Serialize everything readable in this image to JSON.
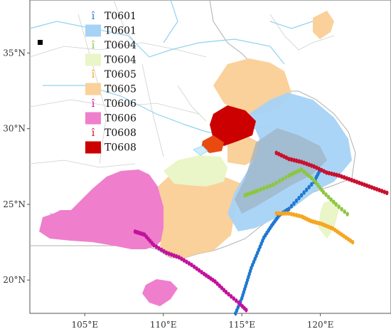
{
  "axes": {
    "x_ticks": [
      "105°E",
      "110°E",
      "115°E",
      "120°E"
    ],
    "y_ticks": [
      "35°N",
      "30°N",
      "25°N",
      "20°N"
    ],
    "lon_range": [
      101.5,
      124.5
    ],
    "lat_range": [
      17.8,
      38.5
    ]
  },
  "legend": [
    {
      "label": "T0601",
      "kind": "track",
      "color": "#1f78d1",
      "icon": "track-marker-icon"
    },
    {
      "label": "T0601",
      "kind": "area",
      "color": "#a6d3f5",
      "icon": "area-swatch-icon"
    },
    {
      "label": "T0604",
      "kind": "track",
      "color": "#8cc63f",
      "icon": "track-marker-icon"
    },
    {
      "label": "T0604",
      "kind": "area",
      "color": "#eaf5c8",
      "icon": "area-swatch-icon"
    },
    {
      "label": "T0605",
      "kind": "track",
      "color": "#f5a623",
      "icon": "track-marker-icon"
    },
    {
      "label": "T0605",
      "kind": "area",
      "color": "#fad19a",
      "icon": "area-swatch-icon"
    },
    {
      "label": "T0606",
      "kind": "track",
      "color": "#c2129b",
      "icon": "track-marker-icon"
    },
    {
      "label": "T0606",
      "kind": "area",
      "color": "#ef7fcc",
      "icon": "area-swatch-icon"
    },
    {
      "label": "T0608",
      "kind": "track",
      "color": "#c8102e",
      "icon": "track-marker-icon"
    },
    {
      "label": "T0608",
      "kind": "area",
      "color": "#cc0000",
      "icon": "area-swatch-icon"
    }
  ],
  "tracks": [
    {
      "name": "T0601",
      "color": "#1f78d1",
      "points": [
        [
          114.6,
          17.8
        ],
        [
          115.0,
          18.8
        ],
        [
          115.3,
          19.8
        ],
        [
          115.6,
          20.8
        ],
        [
          116.0,
          21.8
        ],
        [
          116.4,
          22.8
        ],
        [
          116.9,
          23.6
        ],
        [
          117.4,
          24.3
        ],
        [
          118.0,
          24.7
        ],
        [
          118.8,
          25.6
        ],
        [
          119.6,
          26.5
        ],
        [
          120.0,
          27.3
        ]
      ]
    },
    {
      "name": "T0604",
      "color": "#8cc63f",
      "points": [
        [
          115.2,
          25.6
        ],
        [
          116.0,
          25.9
        ],
        [
          117.0,
          26.3
        ],
        [
          118.0,
          26.9
        ],
        [
          118.8,
          27.3
        ],
        [
          119.6,
          26.6
        ],
        [
          120.2,
          25.8
        ],
        [
          121.0,
          25.0
        ],
        [
          121.9,
          24.2
        ]
      ]
    },
    {
      "name": "T0605",
      "color": "#f5a623",
      "points": [
        [
          117.2,
          24.4
        ],
        [
          118.0,
          24.4
        ],
        [
          118.8,
          24.2
        ],
        [
          119.4,
          23.9
        ],
        [
          120.1,
          23.7
        ],
        [
          120.8,
          23.4
        ],
        [
          121.5,
          22.9
        ],
        [
          122.2,
          22.4
        ]
      ]
    },
    {
      "name": "T0606",
      "color": "#c2129b",
      "points": [
        [
          108.2,
          23.2
        ],
        [
          108.8,
          23.0
        ],
        [
          109.4,
          22.3
        ],
        [
          110.2,
          21.8
        ],
        [
          111.0,
          21.5
        ],
        [
          111.8,
          21.0
        ],
        [
          112.6,
          20.4
        ],
        [
          113.3,
          19.9
        ],
        [
          114.0,
          19.2
        ],
        [
          114.8,
          18.5
        ],
        [
          115.4,
          17.9
        ]
      ]
    },
    {
      "name": "T0608",
      "color": "#c8102e",
      "points": [
        [
          117.2,
          28.4
        ],
        [
          118.0,
          28.0
        ],
        [
          118.8,
          27.8
        ],
        [
          119.6,
          27.5
        ],
        [
          120.4,
          27.1
        ],
        [
          121.2,
          26.9
        ],
        [
          122.0,
          26.6
        ],
        [
          122.8,
          26.3
        ],
        [
          123.6,
          26.0
        ],
        [
          124.4,
          25.7
        ]
      ]
    }
  ],
  "areas": [
    {
      "name": "T0606",
      "color": "#ef7fcc"
    },
    {
      "name": "T0605",
      "color": "#fad19a"
    },
    {
      "name": "T0604",
      "color": "#eaf5c8"
    },
    {
      "name": "T0601",
      "color": "#a6d3f5"
    },
    {
      "name": "T0608",
      "color": "#cc0000"
    }
  ],
  "marker_color": "#000000"
}
